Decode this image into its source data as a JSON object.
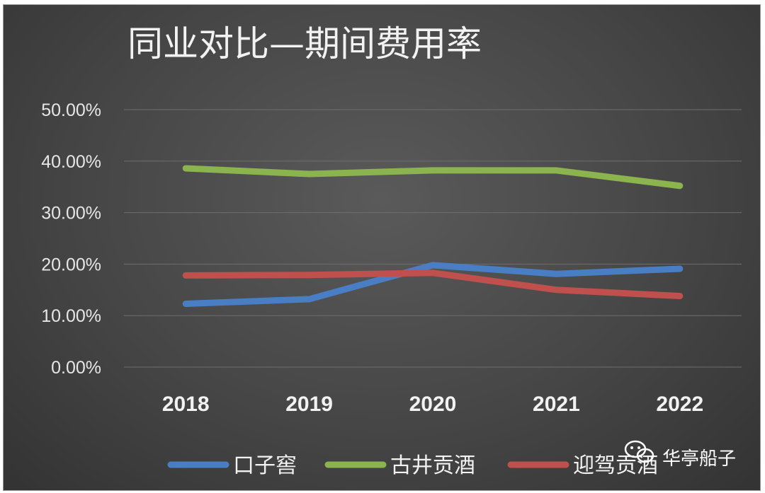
{
  "chart_data": {
    "type": "line",
    "title": "同业对比—期间费用率",
    "categories": [
      "2018",
      "2019",
      "2020",
      "2021",
      "2022"
    ],
    "y_ticks": [
      "0.00%",
      "10.00%",
      "20.00%",
      "30.00%",
      "40.00%",
      "50.00%"
    ],
    "ylim": [
      0,
      50
    ],
    "grid": true,
    "legend_position": "bottom",
    "series": [
      {
        "name": "口子窖",
        "color": "#4a7ec4",
        "values": [
          12.3,
          13.2,
          19.8,
          18.1,
          19.1
        ]
      },
      {
        "name": "古井贡酒",
        "color": "#8cb44e",
        "values": [
          38.6,
          37.5,
          38.2,
          38.2,
          35.2
        ]
      },
      {
        "name": "迎驾贡酒",
        "color": "#c0504d",
        "values": [
          17.8,
          17.9,
          18.3,
          15.0,
          13.8
        ]
      }
    ]
  },
  "watermark": {
    "text": "华亭船子",
    "icon": "wechat-icon"
  },
  "colors": {
    "background": "#464646",
    "gridline": "#6e6e6e",
    "text": "#f2f2f2"
  }
}
